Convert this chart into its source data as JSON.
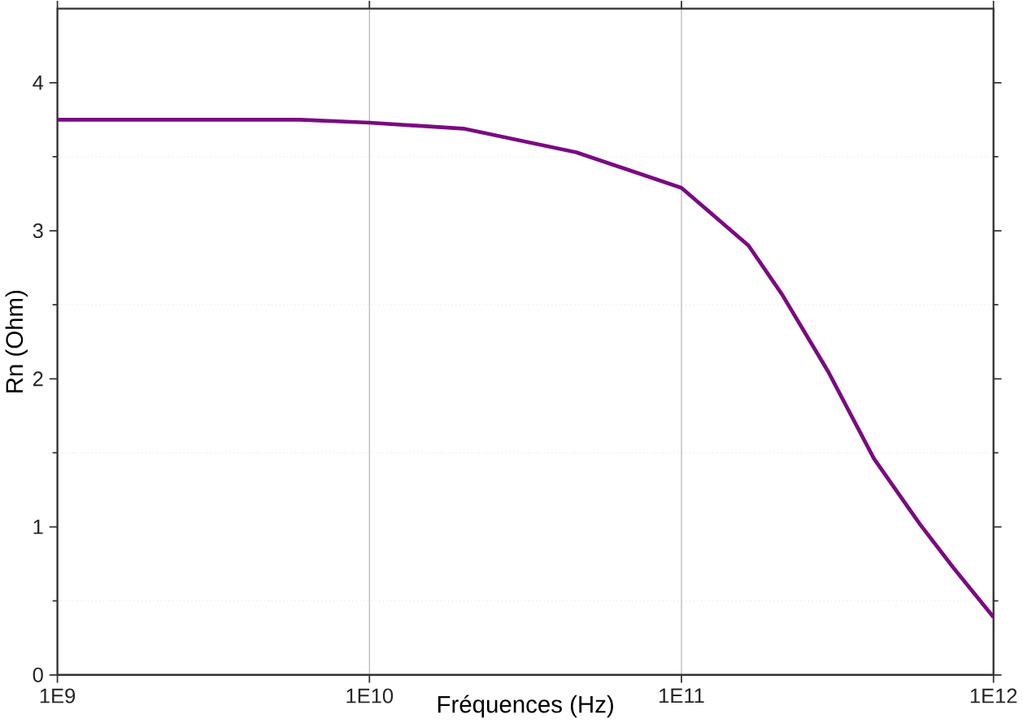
{
  "chart_data": {
    "type": "line",
    "xlabel": "Fréquences (Hz)",
    "ylabel": "Rn (Ohm)",
    "log": "x",
    "xlim": [
      1000000000.0,
      1000000000000.0
    ],
    "ylim": [
      0,
      4.5
    ],
    "xticks": [
      {
        "value": 1000000000.0,
        "label": "1E9"
      },
      {
        "value": 10000000000.0,
        "label": "1E10"
      },
      {
        "value": 100000000000.0,
        "label": "1E11"
      },
      {
        "value": 1000000000000.0,
        "label": "1E12"
      }
    ],
    "yticks": [
      0,
      1,
      2,
      3,
      4
    ],
    "grid": true,
    "marker": "none",
    "line_style": "solid",
    "series": [
      {
        "color": "#7b0a82",
        "x": [
          1000000000.0,
          2000000000.0,
          6000000000.0,
          10000000000.0,
          20000000000.0,
          46000000000.0,
          100000000000.0,
          164000000000.0,
          210000000000.0,
          295000000000.0,
          414000000000.0,
          580000000000.0,
          746000000000.0,
          1000000000000.0
        ],
        "values": [
          3.75,
          3.75,
          3.75,
          3.73,
          3.69,
          3.53,
          3.29,
          2.9,
          2.57,
          2.05,
          1.46,
          1.02,
          0.72,
          0.39
        ]
      }
    ]
  }
}
